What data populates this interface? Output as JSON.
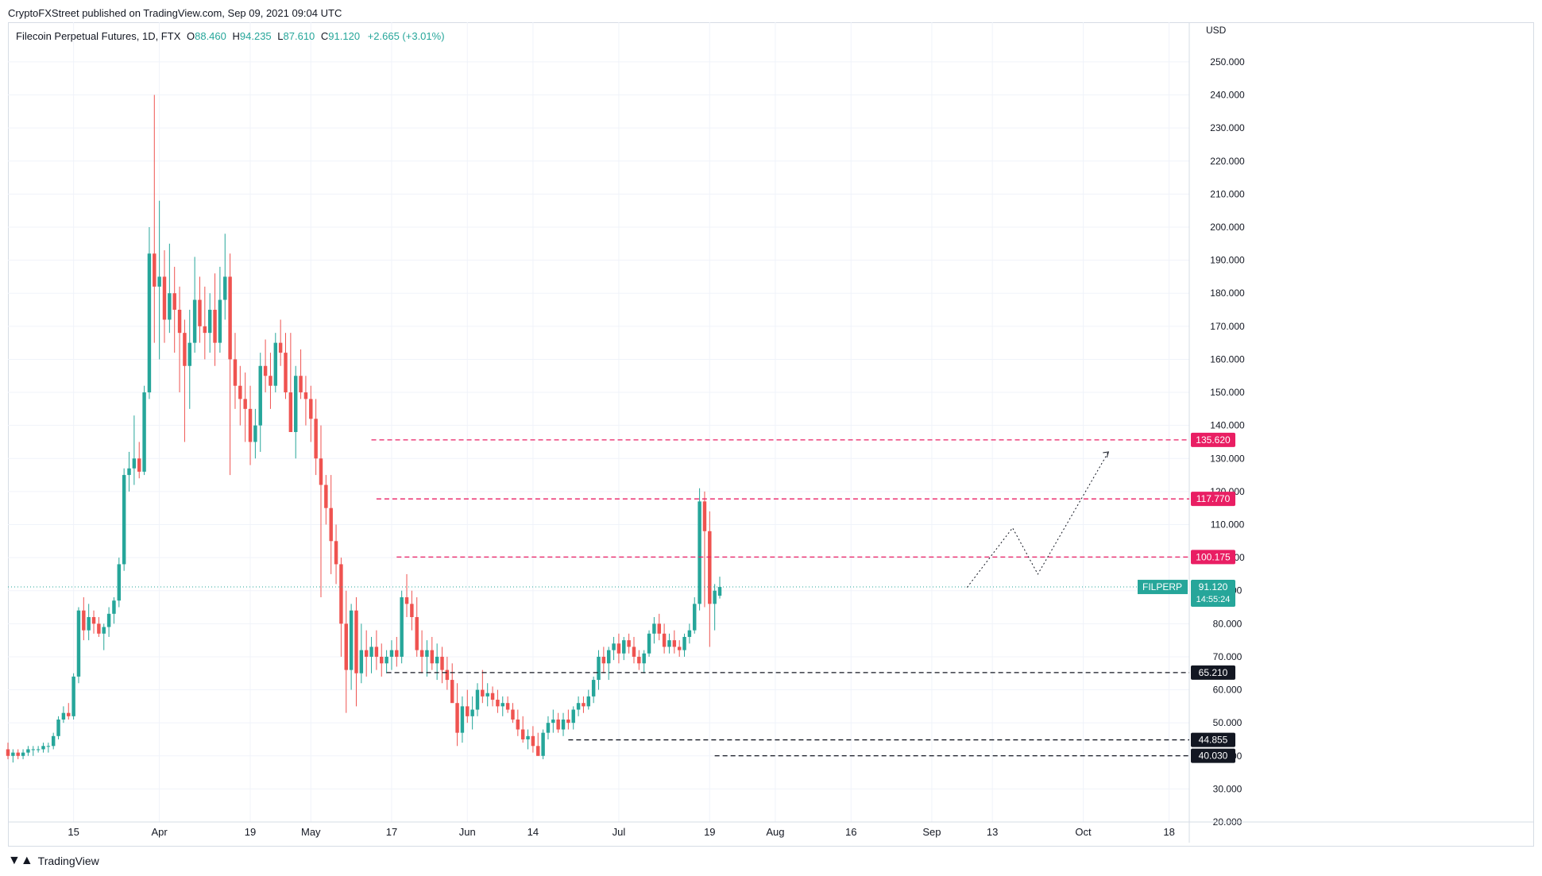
{
  "header": {
    "publisher": "CryptoFXStreet published on TradingView.com, Sep 09, 2021 09:04 UTC"
  },
  "legend": {
    "symbol": "Filecoin Perpetual Futures, 1D, FTX",
    "open_label": "O",
    "open": "88.460",
    "high_label": "H",
    "high": "94.235",
    "low_label": "L",
    "low": "87.610",
    "close_label": "C",
    "close": "91.120",
    "change": "+2.665 (+3.01%)"
  },
  "footer": {
    "brand": "TradingView"
  },
  "colors": {
    "up": "#26a69a",
    "down": "#ef5350",
    "resistance": "#e91e63",
    "support": "#131722",
    "grid": "#f0f3fa",
    "axis_text": "#131722"
  },
  "chart_data": {
    "type": "candlestick",
    "currency": "USD",
    "ylim": [
      20,
      262
    ],
    "y_ticks": [
      "20.000",
      "30.000",
      "40.000",
      "50.000",
      "60.000",
      "70.000",
      "80.000",
      "90.000",
      "100.000",
      "110.000",
      "120.000",
      "130.000",
      "140.000",
      "150.000",
      "160.000",
      "170.000",
      "180.000",
      "190.000",
      "200.000",
      "210.000",
      "220.000",
      "230.000",
      "240.000",
      "250.000"
    ],
    "x_ticks": [
      {
        "label": "15",
        "date": "2021-03-15"
      },
      {
        "label": "Apr",
        "date": "2021-04-01"
      },
      {
        "label": "19",
        "date": "2021-04-19"
      },
      {
        "label": "May",
        "date": "2021-05-01"
      },
      {
        "label": "17",
        "date": "2021-05-17"
      },
      {
        "label": "Jun",
        "date": "2021-06-01"
      },
      {
        "label": "14",
        "date": "2021-06-14"
      },
      {
        "label": "Jul",
        "date": "2021-07-01"
      },
      {
        "label": "19",
        "date": "2021-07-19"
      },
      {
        "label": "Aug",
        "date": "2021-08-01"
      },
      {
        "label": "16",
        "date": "2021-08-16"
      },
      {
        "label": "Sep",
        "date": "2021-09-01"
      },
      {
        "label": "13",
        "date": "2021-09-13"
      },
      {
        "label": "Oct",
        "date": "2021-10-01"
      },
      {
        "label": "18",
        "date": "2021-10-18"
      }
    ],
    "x_range": [
      "2021-03-02",
      "2021-10-22"
    ],
    "candles": {
      "start_date": "2021-03-02",
      "ohlc": [
        [
          42,
          44,
          39,
          40
        ],
        [
          40,
          42,
          38,
          41
        ],
        [
          41,
          42,
          39,
          40
        ],
        [
          40,
          42,
          39,
          41
        ],
        [
          41,
          43,
          40,
          42
        ],
        [
          42,
          43,
          40,
          42
        ],
        [
          42,
          43,
          41,
          42
        ],
        [
          42,
          44,
          41,
          43
        ],
        [
          43,
          44,
          41,
          43
        ],
        [
          43,
          47,
          42,
          46
        ],
        [
          46,
          52,
          45,
          51
        ],
        [
          51,
          55,
          50,
          53
        ],
        [
          53,
          56,
          51,
          52
        ],
        [
          52,
          65,
          51,
          64
        ],
        [
          64,
          85,
          62,
          84
        ],
        [
          84,
          88,
          75,
          78
        ],
        [
          78,
          86,
          75,
          82
        ],
        [
          82,
          84,
          77,
          80
        ],
        [
          80,
          82,
          76,
          77
        ],
        [
          77,
          80,
          72,
          79
        ],
        [
          79,
          85,
          76,
          83
        ],
        [
          83,
          88,
          80,
          87
        ],
        [
          87,
          100,
          85,
          98
        ],
        [
          98,
          127,
          96,
          125
        ],
        [
          125,
          132,
          120,
          127
        ],
        [
          127,
          143,
          122,
          130
        ],
        [
          130,
          135,
          124,
          126
        ],
        [
          126,
          152,
          125,
          150
        ],
        [
          150,
          200,
          148,
          192
        ],
        [
          192,
          240,
          165,
          182
        ],
        [
          182,
          208,
          160,
          185
        ],
        [
          185,
          193,
          165,
          172
        ],
        [
          172,
          195,
          168,
          180
        ],
        [
          180,
          188,
          162,
          175
        ],
        [
          175,
          182,
          150,
          168
        ],
        [
          168,
          172,
          135,
          158
        ],
        [
          158,
          175,
          145,
          165
        ],
        [
          165,
          191,
          162,
          178
        ],
        [
          178,
          185,
          165,
          170
        ],
        [
          170,
          182,
          160,
          168
        ],
        [
          168,
          180,
          162,
          175
        ],
        [
          175,
          186,
          158,
          165
        ],
        [
          165,
          188,
          162,
          178
        ],
        [
          178,
          198,
          172,
          185
        ],
        [
          185,
          192,
          125,
          160
        ],
        [
          160,
          168,
          145,
          152
        ],
        [
          152,
          158,
          140,
          148
        ],
        [
          148,
          156,
          135,
          145
        ],
        [
          145,
          152,
          128,
          135
        ],
        [
          135,
          145,
          130,
          140
        ],
        [
          140,
          162,
          132,
          158
        ],
        [
          158,
          166,
          150,
          155
        ],
        [
          155,
          162,
          145,
          152
        ],
        [
          152,
          168,
          150,
          165
        ],
        [
          165,
          172,
          158,
          162
        ],
        [
          162,
          168,
          148,
          150
        ],
        [
          150,
          168,
          138,
          138
        ],
        [
          138,
          158,
          130,
          155
        ],
        [
          155,
          163,
          148,
          150
        ],
        [
          150,
          155,
          140,
          148
        ],
        [
          148,
          152,
          135,
          142
        ],
        [
          142,
          148,
          125,
          130
        ],
        [
          130,
          140,
          88,
          122
        ],
        [
          122,
          125,
          110,
          115
        ],
        [
          115,
          125,
          95,
          105
        ],
        [
          105,
          110,
          92,
          98
        ],
        [
          98,
          100,
          70,
          80
        ],
        [
          80,
          90,
          53,
          66
        ],
        [
          66,
          86,
          60,
          84
        ],
        [
          84,
          88,
          55,
          65
        ],
        [
          65,
          80,
          62,
          72
        ],
        [
          72,
          78,
          64,
          70
        ],
        [
          70,
          76,
          65,
          73
        ],
        [
          73,
          78,
          66,
          70
        ],
        [
          70,
          74,
          64,
          68
        ],
        [
          68,
          72,
          65,
          70
        ],
        [
          70,
          75,
          66,
          72
        ],
        [
          72,
          76,
          67,
          70
        ],
        [
          70,
          90,
          68,
          88
        ],
        [
          88,
          95,
          82,
          86
        ],
        [
          86,
          90,
          78,
          82
        ],
        [
          82,
          88,
          70,
          72
        ],
        [
          72,
          78,
          65,
          70
        ],
        [
          70,
          75,
          64,
          72
        ],
        [
          72,
          76,
          66,
          68
        ],
        [
          68,
          74,
          63,
          70
        ],
        [
          70,
          73,
          62,
          66
        ],
        [
          66,
          70,
          60,
          63
        ],
        [
          63,
          68,
          57,
          56
        ],
        [
          56,
          62,
          43,
          47
        ],
        [
          47,
          58,
          44,
          55
        ],
        [
          55,
          60,
          50,
          52
        ],
        [
          52,
          58,
          48,
          54
        ],
        [
          54,
          62,
          52,
          60
        ],
        [
          60,
          66,
          56,
          58
        ],
        [
          58,
          62,
          55,
          59
        ],
        [
          59,
          61,
          55,
          57
        ],
        [
          57,
          60,
          53,
          55
        ],
        [
          55,
          58,
          52,
          56
        ],
        [
          56,
          58,
          53,
          54
        ],
        [
          54,
          56,
          50,
          51
        ],
        [
          51,
          54,
          46,
          48
        ],
        [
          48,
          52,
          44,
          45
        ],
        [
          45,
          48,
          42,
          46
        ],
        [
          46,
          49,
          41,
          43
        ],
        [
          43,
          47,
          40,
          40
        ],
        [
          40,
          48,
          39,
          47
        ],
        [
          47,
          52,
          45,
          50
        ],
        [
          50,
          54,
          47,
          51
        ],
        [
          51,
          53,
          47,
          48
        ],
        [
          48,
          53,
          46,
          51
        ],
        [
          51,
          54,
          48,
          50
        ],
        [
          50,
          55,
          48,
          54
        ],
        [
          54,
          58,
          52,
          56
        ],
        [
          56,
          58,
          53,
          55
        ],
        [
          55,
          60,
          54,
          58
        ],
        [
          58,
          64,
          56,
          63
        ],
        [
          63,
          72,
          60,
          70
        ],
        [
          70,
          73,
          65,
          68
        ],
        [
          68,
          73,
          63,
          72
        ],
        [
          72,
          76,
          69,
          74
        ],
        [
          74,
          77,
          68,
          71
        ],
        [
          71,
          76,
          69,
          75
        ],
        [
          75,
          77,
          71,
          73
        ],
        [
          73,
          76,
          68,
          70
        ],
        [
          70,
          72,
          66,
          68
        ],
        [
          68,
          72,
          65,
          71
        ],
        [
          71,
          78,
          70,
          77
        ],
        [
          77,
          82,
          74,
          80
        ],
        [
          80,
          83,
          75,
          77
        ],
        [
          77,
          80,
          71,
          73
        ],
        [
          73,
          77,
          71,
          75
        ],
        [
          75,
          78,
          71,
          73
        ],
        [
          73,
          75,
          70,
          72
        ],
        [
          72,
          77,
          70,
          76
        ],
        [
          76,
          80,
          74,
          78
        ],
        [
          78,
          88,
          77,
          86
        ],
        [
          86,
          121,
          84,
          117
        ],
        [
          117,
          120,
          85,
          108
        ],
        [
          108,
          114,
          73,
          86
        ],
        [
          86,
          92,
          78,
          90
        ],
        [
          88.46,
          94.235,
          87.61,
          91.12
        ]
      ]
    },
    "horizontal_levels": [
      {
        "value": 135.62,
        "label": "135.620",
        "style": "dashed",
        "color": "#e91e63",
        "from_date": "2021-05-13"
      },
      {
        "value": 117.77,
        "label": "117.770",
        "style": "dashed",
        "color": "#e91e63",
        "from_date": "2021-05-14"
      },
      {
        "value": 100.175,
        "label": "100.175",
        "style": "dashed",
        "color": "#e91e63",
        "from_date": "2021-05-18"
      },
      {
        "value": 65.21,
        "label": "65.210",
        "style": "dashed",
        "color": "#131722",
        "from_date": "2021-05-16"
      },
      {
        "value": 44.855,
        "label": "44.855",
        "style": "dashed",
        "color": "#131722",
        "from_date": "2021-06-21"
      },
      {
        "value": 40.03,
        "label": "40.030",
        "style": "dashed",
        "color": "#131722",
        "from_date": "2021-07-20"
      }
    ],
    "price_tag": {
      "symbol": "FILPERP",
      "value": "91.120",
      "countdown": "14:55:24"
    },
    "projection_path": [
      {
        "date": "2021-09-08",
        "value": 91
      },
      {
        "date": "2021-09-17",
        "value": 109
      },
      {
        "date": "2021-09-22",
        "value": 95
      },
      {
        "date": "2021-10-06",
        "value": 132
      }
    ],
    "grid": true
  }
}
